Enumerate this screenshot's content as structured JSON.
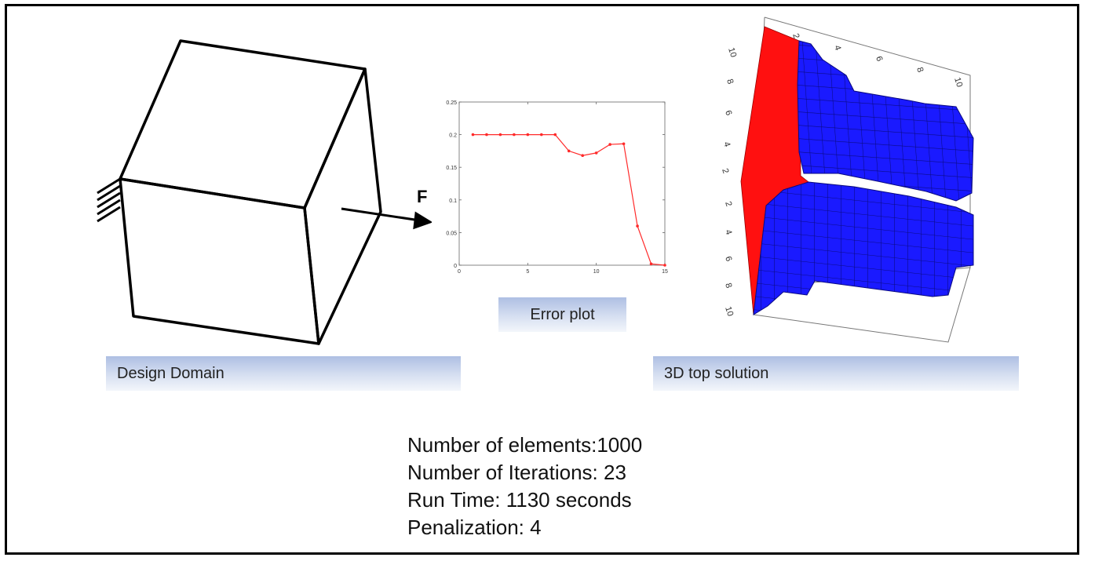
{
  "design_domain": {
    "label": "Design Domain",
    "force_label": "F"
  },
  "error_plot": {
    "label": "Error plot",
    "chart_data": {
      "type": "line",
      "title": "",
      "xlabel": "",
      "ylabel": "",
      "x": [
        1,
        2,
        3,
        4,
        5,
        6,
        7,
        8,
        9,
        10,
        11,
        12,
        13,
        14,
        15
      ],
      "series": [
        {
          "values": [
            0.2,
            0.2,
            0.2,
            0.2,
            0.2,
            0.2,
            0.2,
            0.175,
            0.168,
            0.172,
            0.185,
            0.186,
            0.06,
            0.002,
            0.0
          ]
        }
      ],
      "xlim": [
        0,
        15
      ],
      "ylim": [
        0,
        0.25
      ],
      "xticks": [
        "0",
        "5",
        "10",
        "15"
      ],
      "yticks": [
        "0",
        "0.05",
        "0.1",
        "0.15",
        "0.2",
        "0.25"
      ],
      "line_color": "#ff2a2a",
      "grid": false
    }
  },
  "top_solution": {
    "label": "3D top solution",
    "axis_top_ticks": [
      "2",
      "4",
      "6",
      "8",
      "10"
    ],
    "axis_left_ticks_upper": [
      "10",
      "8",
      "6",
      "4",
      "2"
    ],
    "axis_left_ticks_lower": [
      "2",
      "4",
      "6",
      "8",
      "10"
    ],
    "colors": {
      "support": "#ff1010",
      "material": "#1a1aff",
      "grid": "#0a0a80"
    }
  },
  "stats": {
    "elements": "Number of elements:1000",
    "iterations": "Number of Iterations: 23",
    "runtime": "Run Time: 1130 seconds",
    "penalization": "Penalization: 4"
  }
}
